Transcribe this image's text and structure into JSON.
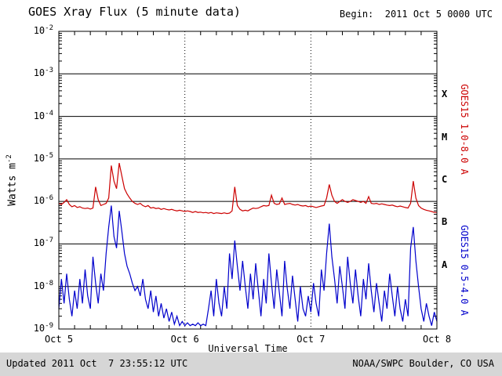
{
  "header": {
    "title": "GOES Xray Flux (5 minute data)",
    "begin_label": "Begin:  2011 Oct 5 0000 UTC"
  },
  "axes": {
    "y_label_base": "Watts m",
    "y_label_exp": "-2",
    "x_label": "Universal Time"
  },
  "footer": {
    "updated": "Updated 2011 Oct  7 23:55:12 UTC",
    "source": "NOAA/SWPC Boulder, CO USA"
  },
  "colors": {
    "long_series": "#cc0000",
    "short_series": "#0000cc",
    "axis": "#000000",
    "footer_bg": "#d6d6d6"
  },
  "chart_data": {
    "type": "line",
    "title": "GOES Xray Flux (5 minute data)",
    "xlabel": "Universal Time",
    "ylabel": "Watts m^-2",
    "y_scale": "log",
    "ylim": [
      1e-09,
      0.01
    ],
    "y_tick_exponents": [
      -2,
      -3,
      -4,
      -5,
      -6,
      -7,
      -8,
      -9
    ],
    "x_tick_labels": [
      "Oct 5",
      "Oct 6",
      "Oct 7",
      "Oct 8"
    ],
    "x_tick_hours": [
      0,
      24,
      48,
      72
    ],
    "x_minor_step_hours": 3,
    "grid": {
      "horizontal": "solid",
      "vertical_day_lines": "dotted"
    },
    "legend_position": "right-rotated",
    "flare_classes": [
      {
        "label": "X",
        "exp": -3.5
      },
      {
        "label": "M",
        "exp": -4.5
      },
      {
        "label": "C",
        "exp": -5.5
      },
      {
        "label": "B",
        "exp": -6.5
      },
      {
        "label": "A",
        "exp": -7.5
      }
    ],
    "side_labels": [
      {
        "text": "GOES15 1.0-8.0 A",
        "color": "#cc0000"
      },
      {
        "text": "GOES15 0.5-4.0 A",
        "color": "#0000cc"
      }
    ],
    "x_start_hour": 0,
    "x_step_hours": 0.5,
    "series": [
      {
        "name": "GOES15 1.0-8.0 A (long wavelength)",
        "color": "#cc0000",
        "values": [
          9e-07,
          8.5e-07,
          9.5e-07,
          1.1e-06,
          8.5e-07,
          7.5e-07,
          8e-07,
          7.2e-07,
          7.5e-07,
          7e-07,
          6.8e-07,
          7e-07,
          6.6e-07,
          7e-07,
          2.2e-06,
          1.1e-06,
          8e-07,
          8.5e-07,
          9e-07,
          1.2e-06,
          7e-06,
          3e-06,
          2e-06,
          8e-06,
          4e-06,
          2e-06,
          1.5e-06,
          1.2e-06,
          1e-06,
          9e-07,
          8.5e-07,
          9e-07,
          8e-07,
          7.5e-07,
          8e-07,
          7e-07,
          7.2e-07,
          6.8e-07,
          7e-07,
          6.5e-07,
          6.8e-07,
          6.5e-07,
          6.3e-07,
          6.5e-07,
          6.2e-07,
          6e-07,
          6.2e-07,
          6e-07,
          5.8e-07,
          6e-07,
          5.8e-07,
          5.5e-07,
          5.8e-07,
          5.5e-07,
          5.6e-07,
          5.4e-07,
          5.5e-07,
          5.3e-07,
          5.5e-07,
          5.2e-07,
          5.4e-07,
          5.3e-07,
          5.2e-07,
          5.4e-07,
          5.2e-07,
          5.3e-07,
          6e-07,
          2.2e-06,
          8e-07,
          6.5e-07,
          6e-07,
          6.2e-07,
          6e-07,
          6.5e-07,
          7e-07,
          6.8e-07,
          7e-07,
          7.5e-07,
          8e-07,
          7.8e-07,
          8e-07,
          1.4e-06,
          9e-07,
          8.5e-07,
          8.8e-07,
          1.2e-06,
          8.5e-07,
          8.8e-07,
          9e-07,
          8.5e-07,
          8.2e-07,
          8.5e-07,
          8e-07,
          7.8e-07,
          8e-07,
          7.5e-07,
          7.8e-07,
          7.5e-07,
          7.2e-07,
          7.5e-07,
          7.8e-07,
          8e-07,
          1.2e-06,
          2.5e-06,
          1.4e-06,
          1e-06,
          9e-07,
          1e-06,
          1.1e-06,
          1e-06,
          9.5e-07,
          1e-06,
          1.1e-06,
          1.05e-06,
          1e-06,
          9.5e-07,
          1e-06,
          9e-07,
          1.3e-06,
          9e-07,
          8.8e-07,
          9e-07,
          8.5e-07,
          8.8e-07,
          8.5e-07,
          8.2e-07,
          8e-07,
          8.2e-07,
          7.8e-07,
          7.5e-07,
          7.8e-07,
          7.5e-07,
          7.2e-07,
          7e-07,
          9e-07,
          3e-06,
          1.2e-06,
          8e-07,
          7e-07,
          6.5e-07,
          6.2e-07,
          6e-07,
          5.8e-07,
          5.5e-07,
          5.5e-07
        ]
      },
      {
        "name": "GOES15 0.5-4.0 A (short wavelength)",
        "color": "#0000cc",
        "values": [
          3e-09,
          1.5e-08,
          4e-09,
          2e-08,
          5e-09,
          2e-09,
          8e-09,
          3e-09,
          1.5e-08,
          4e-09,
          2.5e-08,
          6e-09,
          3e-09,
          5e-08,
          1.2e-08,
          4e-09,
          2e-08,
          8e-09,
          6e-08,
          2.5e-07,
          8e-07,
          1.5e-07,
          8e-08,
          6e-07,
          2e-07,
          6e-08,
          3e-08,
          2e-08,
          1.2e-08,
          8e-09,
          1e-08,
          6e-09,
          1.5e-08,
          5e-09,
          3e-09,
          8e-09,
          2.5e-09,
          6e-09,
          2e-09,
          4e-09,
          1.8e-09,
          3e-09,
          1.5e-09,
          2.5e-09,
          1.3e-09,
          2e-09,
          1.2e-09,
          1.5e-09,
          1.2e-09,
          1.4e-09,
          1.2e-09,
          1.3e-09,
          1.2e-09,
          1.4e-09,
          1.2e-09,
          1.3e-09,
          1.2e-09,
          3e-09,
          8e-09,
          2e-09,
          1.5e-08,
          4e-09,
          2e-09,
          1e-08,
          3e-09,
          6e-08,
          1.5e-08,
          1.2e-07,
          3e-08,
          8e-09,
          4e-08,
          1e-08,
          3e-09,
          2e-08,
          5e-09,
          3.5e-08,
          8e-09,
          2e-09,
          1.5e-08,
          4e-09,
          6e-08,
          1.2e-08,
          3e-09,
          2.5e-08,
          7e-09,
          2e-09,
          4e-08,
          9e-09,
          3e-09,
          1.8e-08,
          5e-09,
          1.5e-09,
          1e-08,
          3e-09,
          2e-09,
          6e-09,
          2.5e-09,
          1.2e-08,
          4e-09,
          2e-09,
          2.5e-08,
          8e-09,
          6e-08,
          3e-07,
          5e-08,
          1.5e-08,
          4e-09,
          3e-08,
          1e-08,
          3e-09,
          5e-08,
          1.2e-08,
          4e-09,
          2.5e-08,
          6e-09,
          2e-09,
          1.5e-08,
          5e-09,
          3.5e-08,
          8e-09,
          2.5e-09,
          1.2e-08,
          4e-09,
          1.5e-09,
          8e-09,
          3e-09,
          2e-08,
          6e-09,
          2e-09,
          1e-08,
          3e-09,
          1.5e-09,
          5e-09,
          2e-09,
          8e-08,
          2.5e-07,
          4e-08,
          1e-08,
          3e-09,
          1.5e-09,
          4e-09,
          2e-09,
          1.2e-09,
          2.5e-09,
          1.5e-09
        ]
      }
    ]
  }
}
